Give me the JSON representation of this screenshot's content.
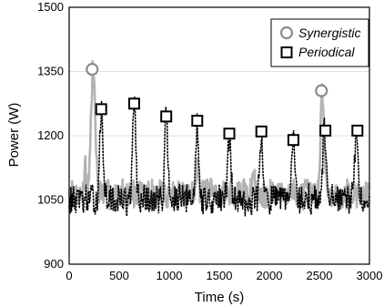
{
  "chart_data": {
    "type": "line",
    "title": "",
    "xlabel": "Time (s)",
    "ylabel": "Power (W)",
    "xlim": [
      0,
      3000
    ],
    "ylim": [
      900,
      1500
    ],
    "xticks": [
      0,
      500,
      1000,
      1500,
      2000,
      2500,
      3000
    ],
    "yticks": [
      900,
      1050,
      1200,
      1350,
      1500
    ],
    "grid": "horizontal",
    "legend_position": "top-right",
    "colors": {
      "synergistic": "#b3b3b3",
      "periodical": "#000000"
    },
    "series": [
      {
        "name": "Synergistic",
        "style": "solid gray line, circle markers at peaks",
        "marker": "circle",
        "baseline": 1065,
        "noise": 30,
        "bumps": [
          [
            160,
            1150,
            10
          ],
          [
            240,
            1355,
            30
          ],
          [
            1280,
            1160,
            15
          ],
          [
            1840,
            1110,
            20
          ],
          [
            2530,
            1305,
            25
          ]
        ],
        "peaks": [
          {
            "x": 230,
            "y": 1355
          },
          {
            "x": 2520,
            "y": 1305
          }
        ]
      },
      {
        "name": "Periodical",
        "style": "dotted black line, square markers at peaks",
        "marker": "square",
        "baseline": 1050,
        "noise": 32,
        "bumps": [
          [
            320,
            1262,
            22
          ],
          [
            650,
            1275,
            22
          ],
          [
            970,
            1245,
            22
          ],
          [
            1280,
            1235,
            22
          ],
          [
            1600,
            1205,
            22
          ],
          [
            1920,
            1210,
            22
          ],
          [
            2240,
            1190,
            22
          ],
          [
            2550,
            1215,
            22
          ],
          [
            2870,
            1212,
            22
          ]
        ],
        "peaks": [
          {
            "x": 320,
            "y": 1262
          },
          {
            "x": 650,
            "y": 1275
          },
          {
            "x": 970,
            "y": 1245
          },
          {
            "x": 1280,
            "y": 1235
          },
          {
            "x": 1600,
            "y": 1205
          },
          {
            "x": 1920,
            "y": 1210
          },
          {
            "x": 2240,
            "y": 1190
          },
          {
            "x": 2560,
            "y": 1212
          },
          {
            "x": 2880,
            "y": 1212
          }
        ]
      }
    ]
  }
}
